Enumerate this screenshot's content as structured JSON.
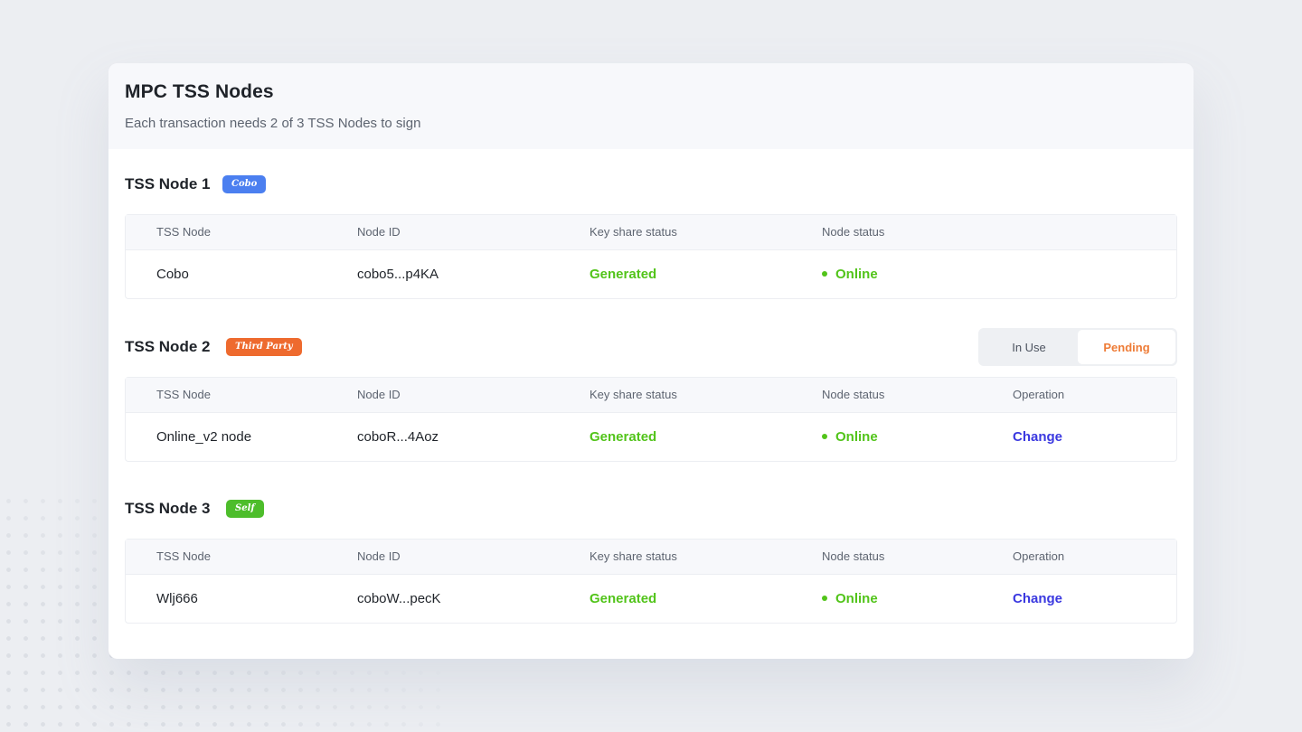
{
  "page": {
    "title": "MPC TSS Nodes",
    "subtitle": "Each transaction needs 2 of 3 TSS Nodes to sign"
  },
  "colors": {
    "background": "#eceef2",
    "card": "#ffffff",
    "header": "#f7f8fb",
    "success": "#52c41a",
    "link": "#3a38e0",
    "pending": "#ee7c37",
    "tag_cobo": "#4b7ff0",
    "tag_third_party": "#ee6a2e",
    "tag_self": "#4dbd2b"
  },
  "columns": {
    "tss_node": "TSS Node",
    "node_id": "Node ID",
    "key_share_status": "Key share status",
    "node_status": "Node status",
    "operation": "Operation"
  },
  "nodes": [
    {
      "title": "TSS Node 1",
      "tag": "Cobo",
      "row": {
        "name": "Cobo",
        "node_id": "cobo5...p4KA",
        "key_share_status": "Generated",
        "node_status": "Online"
      }
    },
    {
      "title": "TSS Node 2",
      "tag": "Third Party",
      "toggle": {
        "in_use": "In Use",
        "pending": "Pending",
        "selected": "Pending"
      },
      "row": {
        "name": "Online_v2 node",
        "node_id": "coboR...4Aoz",
        "key_share_status": "Generated",
        "node_status": "Online",
        "operation": "Change"
      }
    },
    {
      "title": "TSS Node 3",
      "tag": "Self",
      "row": {
        "name": "Wlj666",
        "node_id": "coboW...pecK",
        "key_share_status": "Generated",
        "node_status": "Online",
        "operation": "Change"
      }
    }
  ]
}
